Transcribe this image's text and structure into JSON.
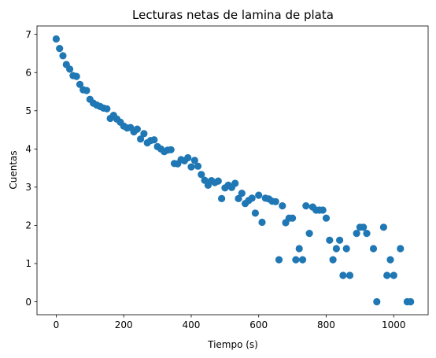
{
  "chart_data": {
    "type": "scatter",
    "title": "Lecturas netas de lamina de plata",
    "xlabel": "Tiempo (s)",
    "ylabel": "Cuentas",
    "xlim": [
      -57,
      1102
    ],
    "ylim": [
      -0.34,
      7.22
    ],
    "xticks": [
      0,
      200,
      400,
      600,
      800,
      1000
    ],
    "yticks": [
      0,
      1,
      2,
      3,
      4,
      5,
      6,
      7
    ],
    "grid": false,
    "marker_color": "#1f77b4",
    "points": [
      [
        0,
        6.88
      ],
      [
        10,
        6.63
      ],
      [
        20,
        6.44
      ],
      [
        30,
        6.21
      ],
      [
        40,
        6.09
      ],
      [
        50,
        5.92
      ],
      [
        60,
        5.9
      ],
      [
        70,
        5.69
      ],
      [
        80,
        5.55
      ],
      [
        90,
        5.53
      ],
      [
        100,
        5.3
      ],
      [
        110,
        5.2
      ],
      [
        120,
        5.15
      ],
      [
        130,
        5.11
      ],
      [
        140,
        5.07
      ],
      [
        150,
        5.05
      ],
      [
        160,
        4.8
      ],
      [
        170,
        4.88
      ],
      [
        180,
        4.78
      ],
      [
        190,
        4.7
      ],
      [
        200,
        4.6
      ],
      [
        210,
        4.55
      ],
      [
        220,
        4.56
      ],
      [
        230,
        4.45
      ],
      [
        240,
        4.52
      ],
      [
        250,
        4.26
      ],
      [
        260,
        4.4
      ],
      [
        270,
        4.16
      ],
      [
        280,
        4.22
      ],
      [
        290,
        4.24
      ],
      [
        300,
        4.06
      ],
      [
        310,
        4.0
      ],
      [
        320,
        3.93
      ],
      [
        330,
        3.97
      ],
      [
        340,
        3.98
      ],
      [
        350,
        3.62
      ],
      [
        360,
        3.61
      ],
      [
        370,
        3.72
      ],
      [
        380,
        3.69
      ],
      [
        390,
        3.77
      ],
      [
        400,
        3.53
      ],
      [
        410,
        3.7
      ],
      [
        420,
        3.55
      ],
      [
        430,
        3.33
      ],
      [
        440,
        3.18
      ],
      [
        450,
        3.05
      ],
      [
        460,
        3.17
      ],
      [
        470,
        3.12
      ],
      [
        480,
        3.16
      ],
      [
        490,
        2.7
      ],
      [
        500,
        2.98
      ],
      [
        510,
        3.05
      ],
      [
        520,
        2.99
      ],
      [
        530,
        3.1
      ],
      [
        540,
        2.7
      ],
      [
        550,
        2.84
      ],
      [
        560,
        2.57
      ],
      [
        570,
        2.65
      ],
      [
        580,
        2.71
      ],
      [
        590,
        2.32
      ],
      [
        600,
        2.79
      ],
      [
        610,
        2.08
      ],
      [
        620,
        2.71
      ],
      [
        630,
        2.69
      ],
      [
        640,
        2.63
      ],
      [
        650,
        2.62
      ],
      [
        660,
        1.1
      ],
      [
        670,
        2.51
      ],
      [
        680,
        2.07
      ],
      [
        690,
        2.19
      ],
      [
        700,
        2.19
      ],
      [
        710,
        1.1
      ],
      [
        720,
        1.39
      ],
      [
        730,
        1.1
      ],
      [
        740,
        2.51
      ],
      [
        750,
        1.79
      ],
      [
        760,
        2.48
      ],
      [
        770,
        2.4
      ],
      [
        780,
        2.4
      ],
      [
        790,
        2.4
      ],
      [
        800,
        2.19
      ],
      [
        810,
        1.61
      ],
      [
        820,
        1.1
      ],
      [
        830,
        1.39
      ],
      [
        840,
        1.61
      ],
      [
        850,
        0.69
      ],
      [
        860,
        1.39
      ],
      [
        870,
        0.69
      ],
      [
        890,
        1.79
      ],
      [
        900,
        1.95
      ],
      [
        910,
        1.95
      ],
      [
        920,
        1.79
      ],
      [
        940,
        1.39
      ],
      [
        950,
        0.0
      ],
      [
        970,
        1.95
      ],
      [
        980,
        0.69
      ],
      [
        990,
        1.1
      ],
      [
        1000,
        0.69
      ],
      [
        1020,
        1.39
      ],
      [
        1040,
        0.0
      ],
      [
        1050,
        0.0
      ]
    ]
  }
}
